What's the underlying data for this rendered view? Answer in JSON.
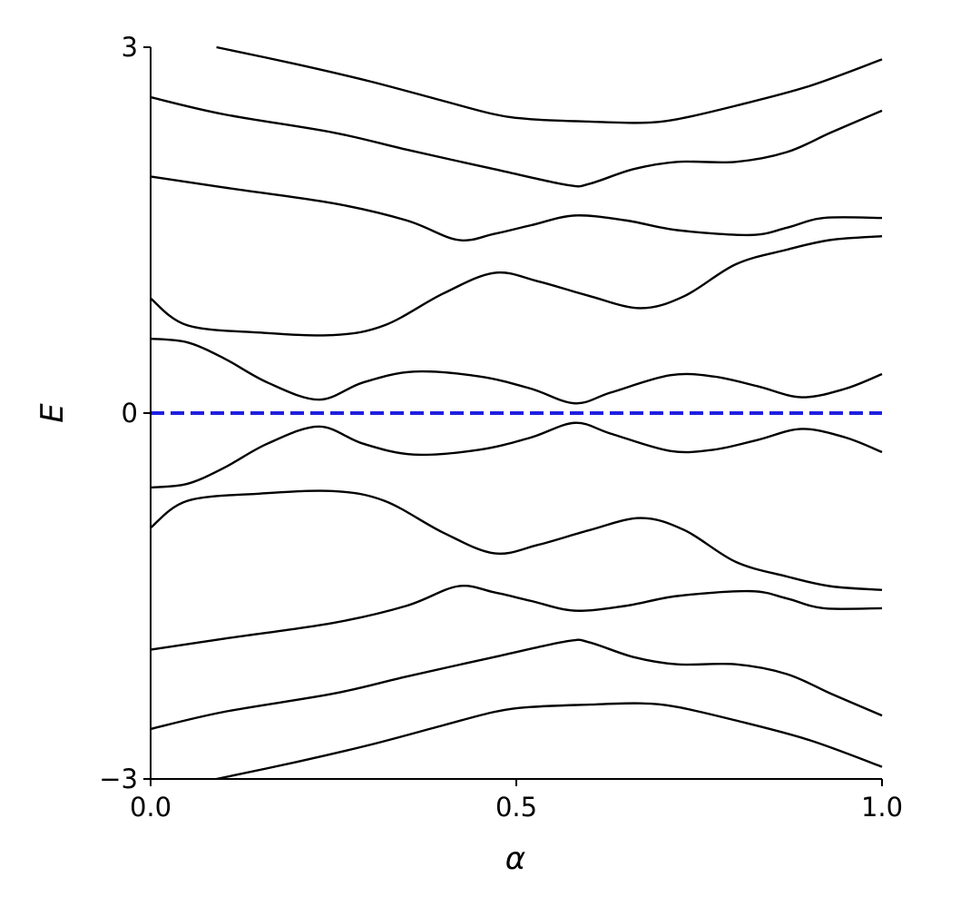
{
  "chart_data": {
    "type": "line",
    "xlabel": "α",
    "ylabel": "E",
    "xlim": [
      0.0,
      1.0
    ],
    "ylim": [
      -3,
      3
    ],
    "xticks": [
      {
        "value": 0.0,
        "label": "0.0"
      },
      {
        "value": 0.5,
        "label": "0.5"
      },
      {
        "value": 1.0,
        "label": "1.0"
      }
    ],
    "yticks": [
      {
        "value": -3,
        "label": "−3"
      },
      {
        "value": 0,
        "label": "0"
      },
      {
        "value": 3,
        "label": "3"
      }
    ],
    "grid": false,
    "legend": "none",
    "colors": {
      "bands": "#000000",
      "reference_line": "#1f1fe0"
    },
    "reference_line": {
      "y": 0,
      "style": "dashed"
    },
    "series": [
      {
        "x": [
          0.09,
          0.2,
          0.3,
          0.4,
          0.47,
          0.52,
          0.6,
          0.67,
          0.72,
          0.8,
          0.9,
          1.0
        ],
        "values": [
          3.0,
          2.86,
          2.72,
          2.56,
          2.45,
          2.41,
          2.39,
          2.38,
          2.41,
          2.52,
          2.68,
          2.9
        ]
      },
      {
        "x": [
          0.0,
          0.1,
          0.25,
          0.35,
          0.47,
          0.57,
          0.6,
          0.66,
          0.72,
          0.8,
          0.87,
          0.93,
          1.0
        ],
        "values": [
          2.59,
          2.45,
          2.3,
          2.16,
          2.0,
          1.87,
          1.88,
          2.0,
          2.06,
          2.06,
          2.14,
          2.3,
          2.48
        ]
      },
      {
        "x": [
          0.0,
          0.1,
          0.25,
          0.35,
          0.42,
          0.47,
          0.52,
          0.58,
          0.65,
          0.72,
          0.82,
          0.87,
          0.92,
          1.0
        ],
        "values": [
          1.94,
          1.85,
          1.72,
          1.58,
          1.42,
          1.47,
          1.54,
          1.62,
          1.58,
          1.5,
          1.46,
          1.52,
          1.6,
          1.6
        ]
      },
      {
        "x": [
          0.0,
          0.05,
          0.15,
          0.25,
          0.32,
          0.4,
          0.47,
          0.53,
          0.6,
          0.67,
          0.73,
          0.8,
          0.87,
          0.93,
          1.0
        ],
        "values": [
          0.94,
          0.72,
          0.66,
          0.64,
          0.72,
          0.98,
          1.15,
          1.08,
          0.96,
          0.86,
          0.96,
          1.22,
          1.34,
          1.42,
          1.45
        ]
      },
      {
        "x": [
          0.0,
          0.05,
          0.1,
          0.16,
          0.23,
          0.29,
          0.36,
          0.45,
          0.52,
          0.58,
          0.63,
          0.71,
          0.77,
          0.83,
          0.89,
          0.95,
          1.0
        ],
        "values": [
          0.61,
          0.58,
          0.45,
          0.25,
          0.11,
          0.25,
          0.34,
          0.3,
          0.2,
          0.08,
          0.17,
          0.31,
          0.3,
          0.22,
          0.13,
          0.2,
          0.32
        ]
      },
      {
        "x": [
          0.0,
          0.05,
          0.1,
          0.16,
          0.23,
          0.29,
          0.36,
          0.45,
          0.52,
          0.58,
          0.63,
          0.71,
          0.77,
          0.83,
          0.89,
          0.95,
          1.0
        ],
        "values": [
          -0.61,
          -0.58,
          -0.45,
          -0.25,
          -0.11,
          -0.25,
          -0.34,
          -0.3,
          -0.2,
          -0.08,
          -0.17,
          -0.31,
          -0.3,
          -0.22,
          -0.13,
          -0.2,
          -0.32
        ]
      },
      {
        "x": [
          0.0,
          0.05,
          0.15,
          0.25,
          0.32,
          0.4,
          0.47,
          0.53,
          0.6,
          0.67,
          0.73,
          0.8,
          0.87,
          0.93,
          1.0
        ],
        "values": [
          -0.94,
          -0.72,
          -0.66,
          -0.64,
          -0.72,
          -0.98,
          -1.15,
          -1.08,
          -0.96,
          -0.86,
          -0.96,
          -1.22,
          -1.34,
          -1.42,
          -1.45
        ]
      },
      {
        "x": [
          0.0,
          0.1,
          0.25,
          0.35,
          0.42,
          0.47,
          0.52,
          0.58,
          0.65,
          0.72,
          0.82,
          0.87,
          0.92,
          1.0
        ],
        "values": [
          -1.94,
          -1.85,
          -1.72,
          -1.58,
          -1.42,
          -1.47,
          -1.54,
          -1.62,
          -1.58,
          -1.5,
          -1.46,
          -1.52,
          -1.6,
          -1.6
        ]
      },
      {
        "x": [
          0.0,
          0.1,
          0.25,
          0.35,
          0.47,
          0.57,
          0.6,
          0.66,
          0.72,
          0.8,
          0.87,
          0.93,
          1.0
        ],
        "values": [
          -2.59,
          -2.45,
          -2.3,
          -2.16,
          -2.0,
          -1.87,
          -1.88,
          -2.0,
          -2.06,
          -2.06,
          -2.14,
          -2.3,
          -2.48
        ]
      },
      {
        "x": [
          0.09,
          0.2,
          0.3,
          0.4,
          0.47,
          0.52,
          0.6,
          0.67,
          0.72,
          0.8,
          0.9,
          1.0
        ],
        "values": [
          -3.0,
          -2.86,
          -2.72,
          -2.56,
          -2.45,
          -2.41,
          -2.39,
          -2.38,
          -2.41,
          -2.52,
          -2.68,
          -2.9
        ]
      }
    ]
  }
}
